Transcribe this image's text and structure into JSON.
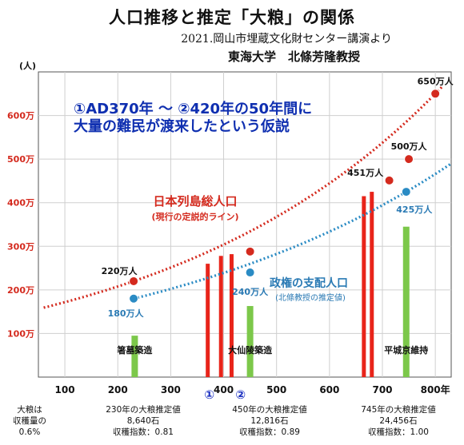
{
  "header": {
    "title": "人口推移と推定「大粮」の関係",
    "subtitle_source": "2021.岡山市埋蔵文化財センター講演より",
    "subtitle_author": "東海大学　北條芳隆教授"
  },
  "chart_data": {
    "type": "line",
    "ylabel": "(人)",
    "xlim": [
      50,
      830
    ],
    "ylim": [
      0,
      700
    ],
    "x_ticks": [
      100,
      200,
      300,
      400,
      500,
      600,
      700,
      800
    ],
    "x_tick_labels": [
      "100",
      "200",
      "300",
      "400",
      "500",
      "600",
      "700",
      "800年"
    ],
    "y_ticks": [
      100,
      200,
      300,
      400,
      500,
      600
    ],
    "y_tick_labels": [
      "100万",
      "200万",
      "300万",
      "400万",
      "500万",
      "600万"
    ],
    "grid": true,
    "series": [
      {
        "name": "日本列島総人口",
        "note": "(現行の定説的ライン)",
        "color": "#d42a1e",
        "points": [
          {
            "x": 230,
            "y": 220,
            "label": "220万人"
          },
          {
            "x": 450,
            "y": 288,
            "label": ""
          },
          {
            "x": 713,
            "y": 451,
            "label": "451万人"
          },
          {
            "x": 750,
            "y": 500,
            "label": "500万人"
          },
          {
            "x": 800,
            "y": 650,
            "label": "650万人"
          }
        ]
      },
      {
        "name": "政権の支配人口",
        "note": "(北條教授の推定値)",
        "color": "#2a8bc4",
        "points": [
          {
            "x": 230,
            "y": 180,
            "label": "180万人"
          },
          {
            "x": 450,
            "y": 240,
            "label": "240万人"
          },
          {
            "x": 745,
            "y": 425,
            "label": "425万人"
          }
        ]
      }
    ],
    "red_bars": [
      {
        "x": 370,
        "value": 260
      },
      {
        "x": 395,
        "value": 278
      },
      {
        "x": 415,
        "value": 282
      },
      {
        "x": 665,
        "value": 415
      },
      {
        "x": 680,
        "value": 425
      }
    ],
    "green_bars": [
      {
        "x": 232,
        "value": 95,
        "label": "箸墓築造"
      },
      {
        "x": 450,
        "value": 163,
        "label": "大仙陵築造"
      },
      {
        "x": 745,
        "value": 345,
        "label": "平城京維持"
      }
    ],
    "markers": [
      {
        "x": 370,
        "label": "①"
      },
      {
        "x": 420,
        "label": "②"
      }
    ],
    "annotation": {
      "line1": "①AD370年 ～ ②420年の50年間に",
      "line2": "大量の難民が渡来したという仮説"
    }
  },
  "footer": {
    "left_l1": "大粮は",
    "left_l2": "収穫量の",
    "left_l3": "0.6%",
    "c1_l1": "230年の大粮推定値",
    "c1_l2": "8,640石",
    "c1_l3": "収穫指数：0.81",
    "c2_l1": "450年の大粮推定値",
    "c2_l2": "12,816石",
    "c2_l3": "収穫指数：0.89",
    "c3_l1": "745年の大粮推定値",
    "c3_l2": "24,456石",
    "c3_l3": "収穫指数：1.00"
  }
}
